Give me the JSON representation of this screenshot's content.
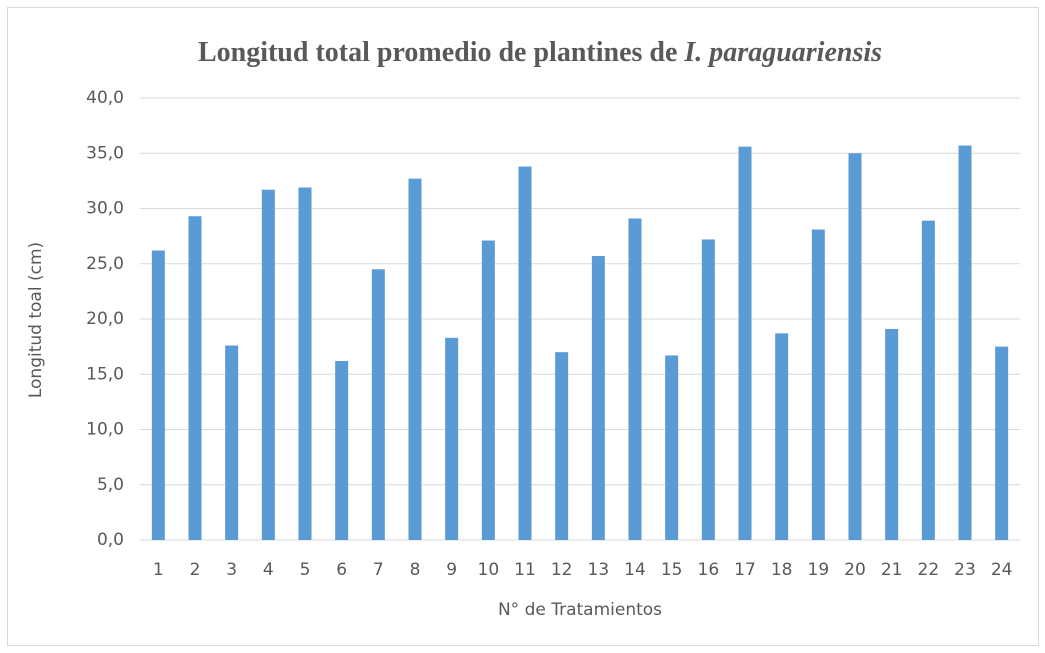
{
  "chart_data": {
    "type": "bar",
    "title": [
      "Longitud total promedio de plantines de ",
      "I. paraguariensis"
    ],
    "x_label": "N° de Tratamientos",
    "y_label": "Longitud toal  (cm)",
    "categories": [
      "1",
      "2",
      "3",
      "4",
      "5",
      "6",
      "7",
      "8",
      "9",
      "10",
      "11",
      "12",
      "13",
      "14",
      "15",
      "16",
      "17",
      "18",
      "19",
      "20",
      "21",
      "22",
      "23",
      "24"
    ],
    "values": [
      26.2,
      29.3,
      17.6,
      31.7,
      31.9,
      16.2,
      24.5,
      32.7,
      18.3,
      27.1,
      33.8,
      17.0,
      25.7,
      29.1,
      16.7,
      27.2,
      35.6,
      18.7,
      28.1,
      35.0,
      19.1,
      28.9,
      35.7,
      17.5
    ],
    "color": "#5b9bd5",
    "ylim": [
      0,
      40
    ],
    "yticks": [
      {
        "value": 0,
        "label": "0,0"
      },
      {
        "value": 5,
        "label": "5,0"
      },
      {
        "value": 10,
        "label": "10,0"
      },
      {
        "value": 15,
        "label": "15,0"
      },
      {
        "value": 20,
        "label": "20,0"
      },
      {
        "value": 25,
        "label": "25,0"
      },
      {
        "value": 30,
        "label": "30,0"
      },
      {
        "value": 35,
        "label": "35,0"
      },
      {
        "value": 40,
        "label": "40,0"
      }
    ],
    "grid": true
  }
}
